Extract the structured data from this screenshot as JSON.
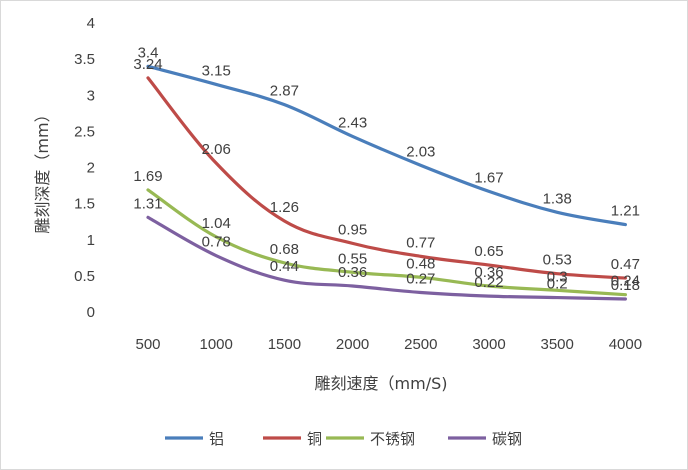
{
  "chart_data": {
    "type": "line",
    "title": "",
    "xlabel": "雕刻速度（mm/S)",
    "ylabel": "雕刻深度（mm）",
    "categories": [
      "500",
      "1000",
      "1500",
      "2000",
      "2500",
      "3000",
      "3500",
      "4000"
    ],
    "ylim": [
      0,
      4
    ],
    "yticks": [
      "0",
      "0.5",
      "1",
      "1.5",
      "2",
      "2.5",
      "3",
      "3.5",
      "4"
    ],
    "legend_position": "bottom",
    "grid": false,
    "series": [
      {
        "name": "铝",
        "color": "#4a7ebb",
        "values": [
          3.4,
          3.15,
          2.87,
          2.43,
          2.03,
          1.67,
          1.38,
          1.21
        ],
        "labels": [
          "3.4",
          "3.15",
          "2.87",
          "2.43",
          "2.03",
          "1.67",
          "1.38",
          "1.21"
        ]
      },
      {
        "name": "铜",
        "color": "#be4b48",
        "values": [
          3.24,
          2.06,
          1.26,
          0.95,
          0.77,
          0.65,
          0.53,
          0.47
        ],
        "labels": [
          "3.24",
          "2.06",
          "1.26",
          "0.95",
          "0.77",
          "0.65",
          "0.53",
          "0.47"
        ]
      },
      {
        "name": "不锈钢",
        "color": "#98b954",
        "values": [
          1.69,
          1.04,
          0.68,
          0.55,
          0.48,
          0.36,
          0.3,
          0.24
        ],
        "labels": [
          "1.69",
          "1.04",
          "0.68",
          "0.55",
          "0.48",
          "0.36",
          "0.3",
          "0.24"
        ]
      },
      {
        "name": "碳钢",
        "color": "#7d60a0",
        "values": [
          1.31,
          0.78,
          0.44,
          0.36,
          0.27,
          0.22,
          0.2,
          0.18
        ],
        "labels": [
          "1.31",
          "0.78",
          "0.44",
          "0.36",
          "0.27",
          "0.22",
          "0.2",
          "0.18"
        ]
      }
    ]
  }
}
